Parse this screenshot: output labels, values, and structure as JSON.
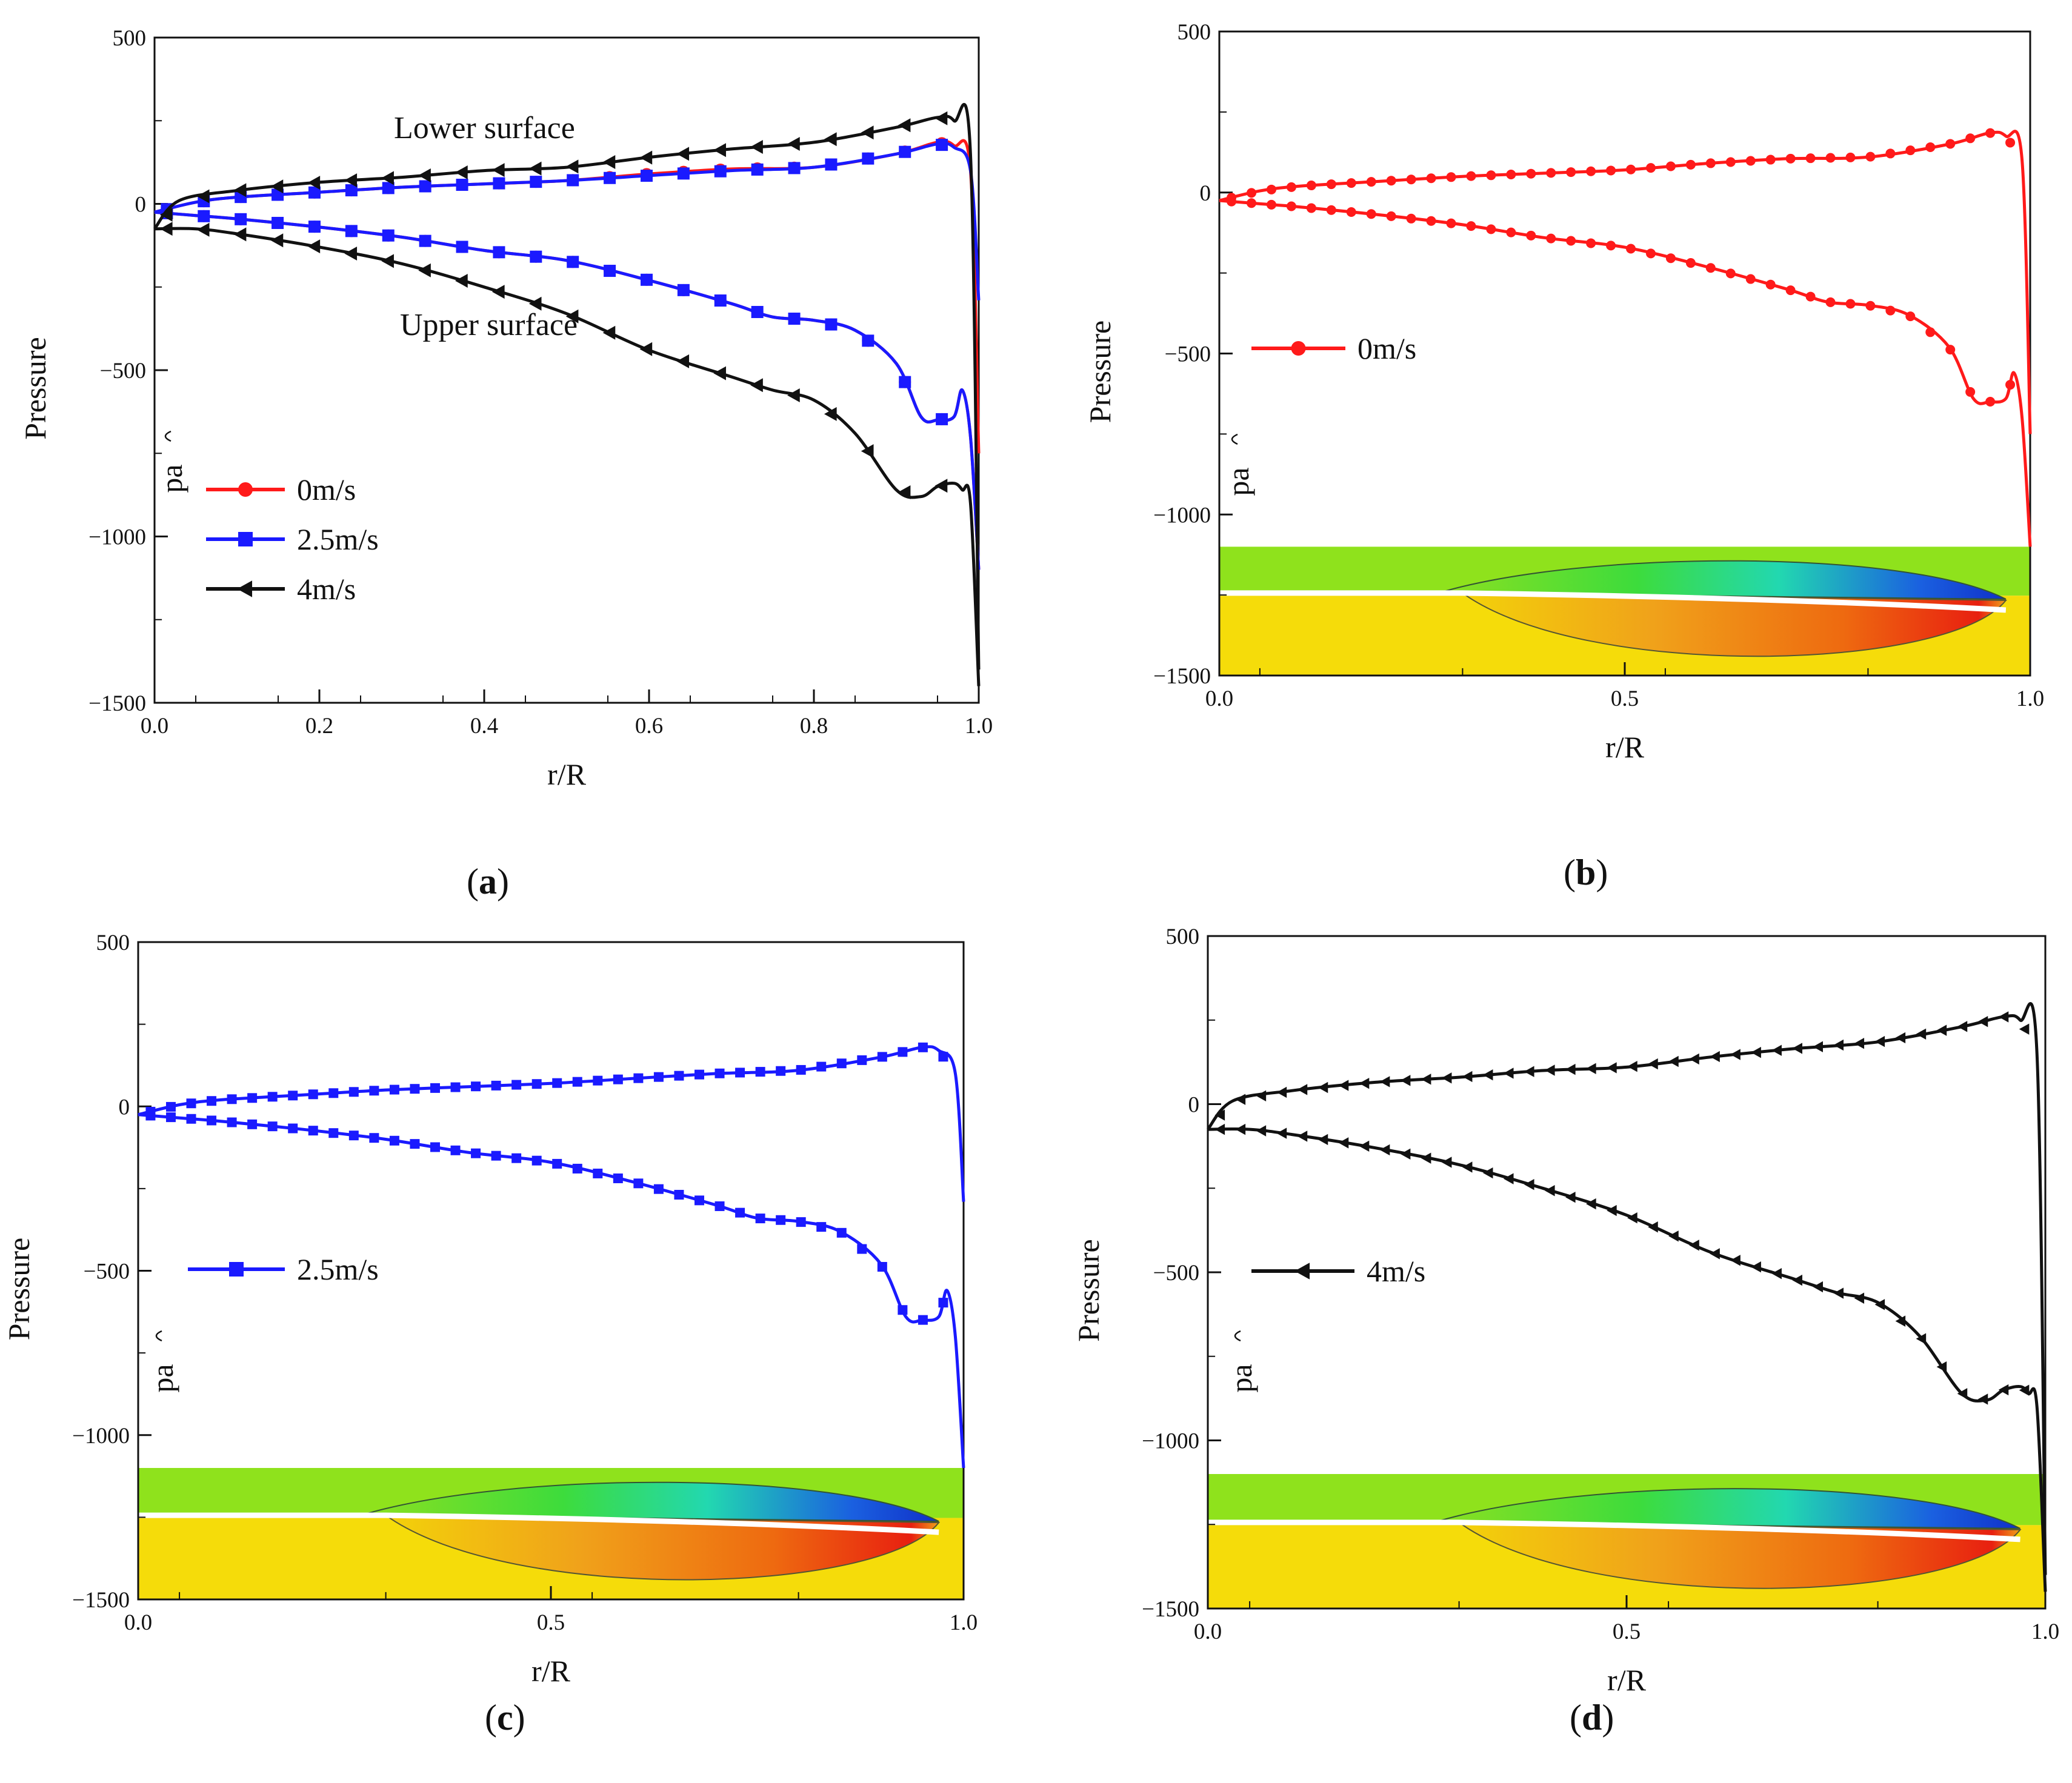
{
  "chart_data": [
    {
      "panel": "a",
      "type": "line",
      "xlabel": "r/R",
      "ylabel": "Pressure",
      "yunit": "pa",
      "xlim": [
        0,
        1
      ],
      "ylim": [
        -1500,
        500
      ],
      "xticks": [
        "0.0",
        "0.2",
        "0.4",
        "0.6",
        "0.8",
        "1.0"
      ],
      "yticks": [
        "500",
        "0",
        "−500",
        "−1000",
        "−1500"
      ],
      "annotations": [
        "Lower surface",
        "Upper surface"
      ],
      "caption": "a",
      "series": [
        {
          "name": "0m/s",
          "color": "#ff1a1a",
          "marker": "circle",
          "lower": {
            "x": [
              0,
              0.05,
              0.1,
              0.2,
              0.3,
              0.4,
              0.5,
              0.6,
              0.7,
              0.8,
              0.9,
              0.95,
              0.97,
              0.99,
              1.0
            ],
            "y": [
              -25,
              5,
              20,
              35,
              50,
              60,
              70,
              90,
              105,
              110,
              150,
              185,
              175,
              100,
              -750
            ]
          },
          "upper": {
            "x": [
              0,
              0.05,
              0.1,
              0.2,
              0.3,
              0.4,
              0.5,
              0.6,
              0.7,
              0.75,
              0.8,
              0.85,
              0.9,
              0.93,
              0.95,
              0.97,
              0.98,
              0.99,
              1.0
            ],
            "y": [
              -25,
              -35,
              -45,
              -70,
              -100,
              -140,
              -170,
              -230,
              -300,
              -340,
              -350,
              -380,
              -480,
              -640,
              -650,
              -640,
              -560,
              -700,
              -1100
            ]
          }
        },
        {
          "name": "2.5m/s",
          "color": "#1a1aff",
          "marker": "square",
          "lower": {
            "x": [
              0,
              0.05,
              0.1,
              0.2,
              0.3,
              0.4,
              0.5,
              0.6,
              0.7,
              0.8,
              0.9,
              0.95,
              0.97,
              0.99,
              1.0
            ],
            "y": [
              -25,
              5,
              20,
              35,
              50,
              60,
              70,
              85,
              100,
              110,
              150,
              180,
              170,
              100,
              -290
            ]
          },
          "upper": {
            "x": [
              0,
              0.05,
              0.1,
              0.2,
              0.3,
              0.4,
              0.5,
              0.6,
              0.7,
              0.75,
              0.8,
              0.85,
              0.9,
              0.93,
              0.95,
              0.97,
              0.98,
              0.99,
              1.0
            ],
            "y": [
              -25,
              -35,
              -45,
              -70,
              -100,
              -140,
              -170,
              -230,
              -300,
              -340,
              -350,
              -380,
              -480,
              -640,
              -650,
              -640,
              -560,
              -700,
              -1100
            ]
          }
        },
        {
          "name": "4m/s",
          "color": "#111111",
          "marker": "triangle-left",
          "lower": {
            "x": [
              0,
              0.03,
              0.1,
              0.2,
              0.3,
              0.4,
              0.5,
              0.6,
              0.7,
              0.8,
              0.9,
              0.95,
              0.97,
              0.99,
              1.0
            ],
            "y": [
              -75,
              10,
              40,
              65,
              80,
              100,
              110,
              140,
              165,
              185,
              230,
              260,
              250,
              150,
              -1400
            ]
          },
          "upper": {
            "x": [
              0,
              0.05,
              0.1,
              0.2,
              0.3,
              0.4,
              0.5,
              0.6,
              0.7,
              0.75,
              0.8,
              0.85,
              0.9,
              0.93,
              0.95,
              0.97,
              0.98,
              0.99,
              1.0
            ],
            "y": [
              -75,
              -75,
              -90,
              -130,
              -180,
              -250,
              -330,
              -440,
              -520,
              -560,
              -590,
              -690,
              -860,
              -880,
              -850,
              -840,
              -860,
              -900,
              -1450
            ]
          }
        }
      ]
    },
    {
      "panel": "b",
      "type": "line",
      "xlabel": "r/R",
      "ylabel": "Pressure",
      "yunit": "pa",
      "xlim": [
        0,
        1
      ],
      "ylim": [
        -1500,
        500
      ],
      "xticks": [
        "0.0",
        "0.5",
        "1.0"
      ],
      "yticks": [
        "500",
        "0",
        "−500",
        "−1000",
        "−1500"
      ],
      "caption": "b",
      "series": [
        {
          "name": "0m/s",
          "color": "#ff1a1a",
          "marker": "circle",
          "lower": {
            "x": [
              0,
              0.05,
              0.1,
              0.2,
              0.3,
              0.4,
              0.5,
              0.6,
              0.7,
              0.8,
              0.9,
              0.95,
              0.97,
              0.99,
              1.0
            ],
            "y": [
              -25,
              5,
              20,
              35,
              50,
              60,
              70,
              90,
              105,
              110,
              150,
              185,
              175,
              100,
              -750
            ]
          },
          "upper": {
            "x": [
              0,
              0.05,
              0.1,
              0.2,
              0.3,
              0.4,
              0.5,
              0.6,
              0.7,
              0.75,
              0.8,
              0.85,
              0.9,
              0.93,
              0.95,
              0.97,
              0.98,
              0.99,
              1.0
            ],
            "y": [
              -25,
              -35,
              -45,
              -70,
              -100,
              -140,
              -170,
              -230,
              -300,
              -340,
              -350,
              -380,
              -480,
              -640,
              -650,
              -640,
              -560,
              -700,
              -1100
            ]
          }
        }
      ]
    },
    {
      "panel": "c",
      "type": "line",
      "xlabel": "r/R",
      "ylabel": "Pressure",
      "yunit": "pa",
      "xlim": [
        0,
        1
      ],
      "ylim": [
        -1500,
        500
      ],
      "xticks": [
        "0.0",
        "0.5",
        "1.0"
      ],
      "yticks": [
        "500",
        "0",
        "−500",
        "−1000",
        "−1500"
      ],
      "caption": "c",
      "series": [
        {
          "name": "2.5m/s",
          "color": "#1a1aff",
          "marker": "square",
          "lower": {
            "x": [
              0,
              0.05,
              0.1,
              0.2,
              0.3,
              0.4,
              0.5,
              0.6,
              0.7,
              0.8,
              0.9,
              0.95,
              0.97,
              0.99,
              1.0
            ],
            "y": [
              -25,
              5,
              20,
              35,
              50,
              60,
              70,
              85,
              100,
              110,
              150,
              180,
              170,
              100,
              -290
            ]
          },
          "upper": {
            "x": [
              0,
              0.05,
              0.1,
              0.2,
              0.3,
              0.4,
              0.5,
              0.6,
              0.7,
              0.75,
              0.8,
              0.85,
              0.9,
              0.93,
              0.95,
              0.97,
              0.98,
              0.99,
              1.0
            ],
            "y": [
              -25,
              -35,
              -45,
              -70,
              -100,
              -140,
              -170,
              -230,
              -300,
              -340,
              -350,
              -380,
              -480,
              -640,
              -650,
              -640,
              -560,
              -700,
              -1100
            ]
          }
        }
      ]
    },
    {
      "panel": "d",
      "type": "line",
      "xlabel": "r/R",
      "ylabel": "Pressure",
      "yunit": "pa",
      "xlim": [
        0,
        1
      ],
      "ylim": [
        -1500,
        500
      ],
      "xticks": [
        "0.0",
        "0.5",
        "1.0"
      ],
      "yticks": [
        "500",
        "0",
        "−500",
        "−1000",
        "−1500"
      ],
      "caption": "d",
      "series": [
        {
          "name": "4m/s",
          "color": "#111111",
          "marker": "triangle-left",
          "lower": {
            "x": [
              0,
              0.03,
              0.1,
              0.2,
              0.3,
              0.4,
              0.5,
              0.6,
              0.7,
              0.8,
              0.9,
              0.95,
              0.97,
              0.99,
              1.0
            ],
            "y": [
              -75,
              10,
              40,
              65,
              80,
              100,
              110,
              140,
              165,
              185,
              230,
              260,
              250,
              150,
              -1400
            ]
          },
          "upper": {
            "x": [
              0,
              0.05,
              0.1,
              0.2,
              0.3,
              0.4,
              0.5,
              0.6,
              0.7,
              0.75,
              0.8,
              0.85,
              0.9,
              0.93,
              0.95,
              0.97,
              0.98,
              0.99,
              1.0
            ],
            "y": [
              -75,
              -75,
              -90,
              -130,
              -180,
              -250,
              -330,
              -440,
              -520,
              -560,
              -590,
              -690,
              -860,
              -880,
              -850,
              -840,
              -860,
              -900,
              -1450
            ]
          }
        }
      ]
    }
  ]
}
